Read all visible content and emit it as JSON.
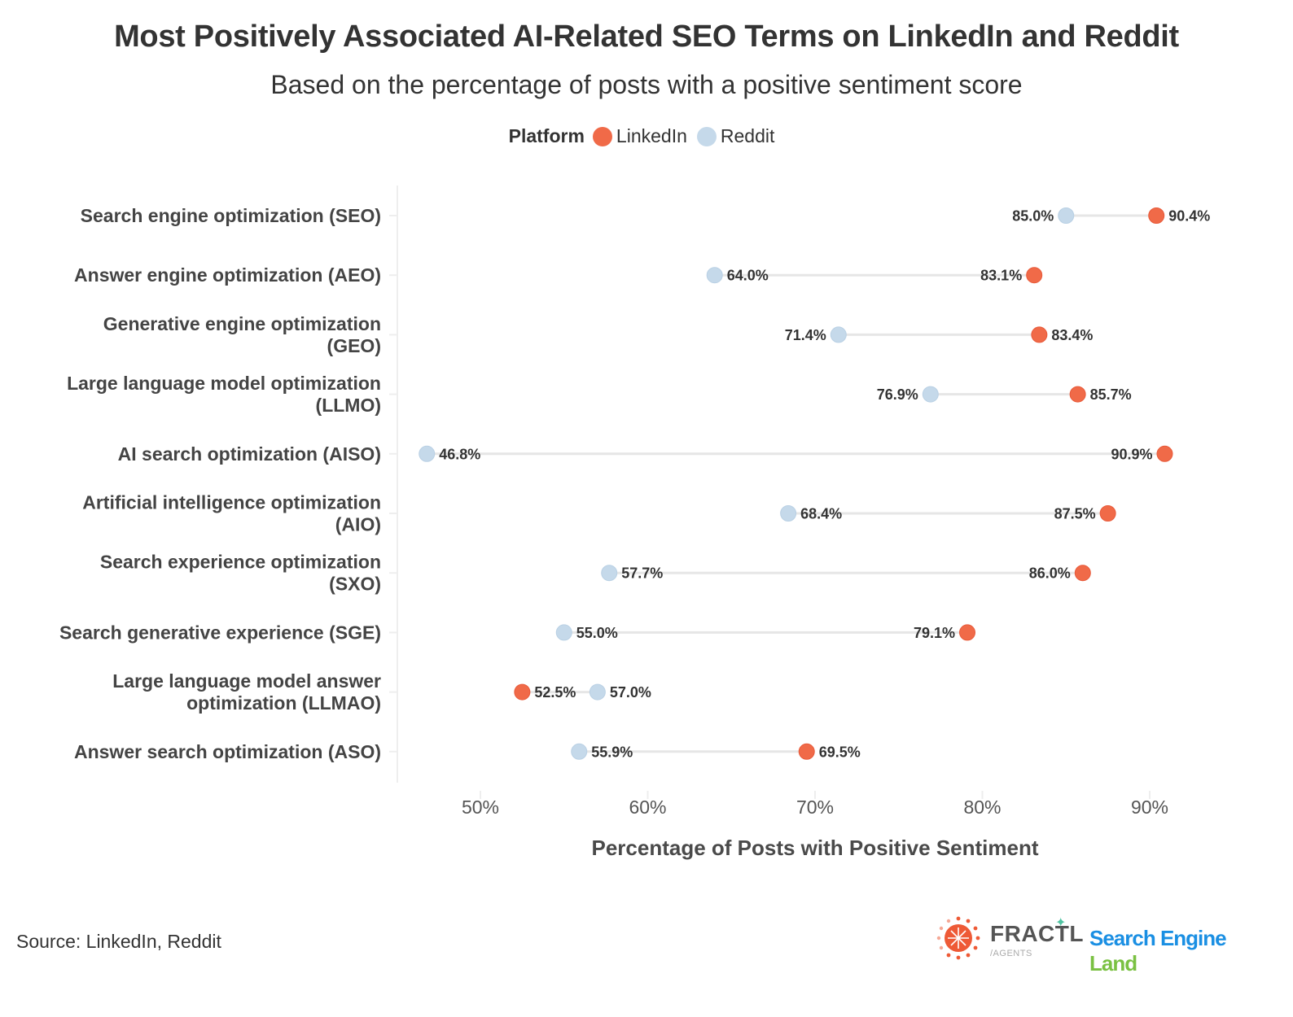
{
  "header": {
    "title": "Most Positively Associated AI-Related SEO Terms on LinkedIn and Reddit",
    "subtitle": "Based on the percentage of posts with a positive sentiment score"
  },
  "legend": {
    "title": "Platform",
    "items": [
      {
        "label": "LinkedIn",
        "color": "#f06a48"
      },
      {
        "label": "Reddit",
        "color": "#c5d9ea"
      }
    ]
  },
  "footer": {
    "source": "Source: LinkedIn, Reddit",
    "logos": {
      "fractl_word": "FRACTL",
      "fractl_sub": "/AGENTS",
      "sel_part1": "Search Engine",
      "sel_part2": "Land"
    }
  },
  "chart_data": {
    "type": "dumbbell",
    "title": "Most Positively Associated AI-Related SEO Terms on LinkedIn and Reddit",
    "subtitle": "Based on the percentage of posts with a positive sentiment score",
    "xlabel": "Percentage of Posts with Positive Sentiment",
    "ylabel": "",
    "xlim": [
      45,
      92.5
    ],
    "xticks": [
      50,
      60,
      70,
      80,
      90
    ],
    "xtick_labels": [
      "50%",
      "60%",
      "70%",
      "80%",
      "90%"
    ],
    "grid": false,
    "legend_position": "top-center",
    "categories": [
      [
        "Search engine optimization (SEO)"
      ],
      [
        "Answer engine optimization (AEO)"
      ],
      [
        "Generative engine optimization",
        "(GEO)"
      ],
      [
        "Large language model optimization",
        "(LLMO)"
      ],
      [
        "AI search optimization (AISO)"
      ],
      [
        "Artificial intelligence optimization",
        "(AIO)"
      ],
      [
        "Search experience optimization",
        "(SXO)"
      ],
      [
        "Search generative experience (SGE)"
      ],
      [
        "Large language model answer",
        "optimization (LLMAO)"
      ],
      [
        "Answer search optimization (ASO)"
      ]
    ],
    "series": [
      {
        "name": "LinkedIn",
        "color": "#f06a48",
        "values": [
          90.4,
          83.1,
          83.4,
          85.7,
          90.9,
          87.5,
          86.0,
          79.1,
          52.5,
          69.5
        ],
        "labels": [
          "90.4%",
          "83.1%",
          "83.4%",
          "85.7%",
          "90.9%",
          "87.5%",
          "86.0%",
          "79.1%",
          "52.5%",
          "69.5%"
        ]
      },
      {
        "name": "Reddit",
        "color": "#c5d9ea",
        "values": [
          85.0,
          64.0,
          71.4,
          76.9,
          46.8,
          68.4,
          57.7,
          55.0,
          57.0,
          55.9
        ],
        "labels": [
          "85.0%",
          "64.0%",
          "71.4%",
          "76.9%",
          "46.8%",
          "68.4%",
          "57.7%",
          "55.0%",
          "57.0%",
          "55.9%"
        ]
      }
    ]
  }
}
